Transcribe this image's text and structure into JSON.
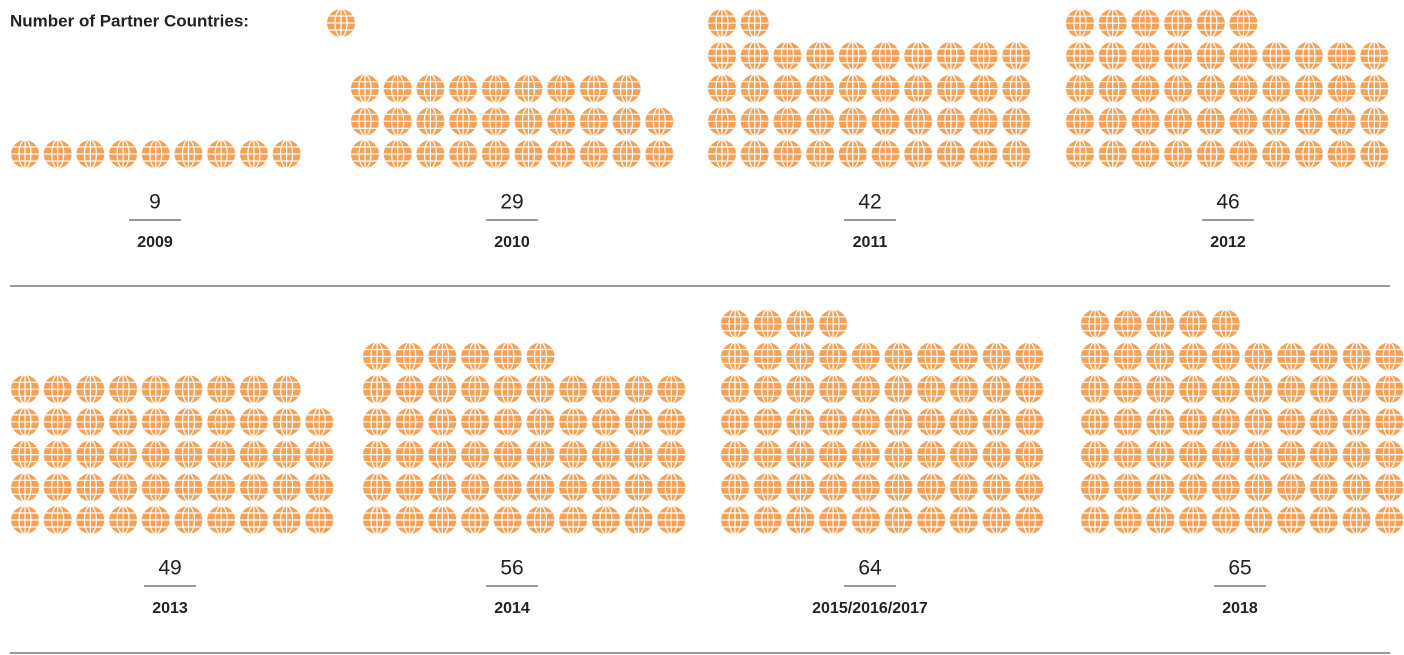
{
  "chart_data": {
    "type": "pictograph",
    "title": "Number of Partner Countries:",
    "categories": [
      "2009",
      "2010",
      "2011",
      "2012",
      "2013",
      "2014",
      "2015/2016/2017",
      "2018"
    ],
    "values": [
      9,
      29,
      42,
      46,
      49,
      56,
      64,
      65
    ],
    "color": "#f5a259"
  }
}
